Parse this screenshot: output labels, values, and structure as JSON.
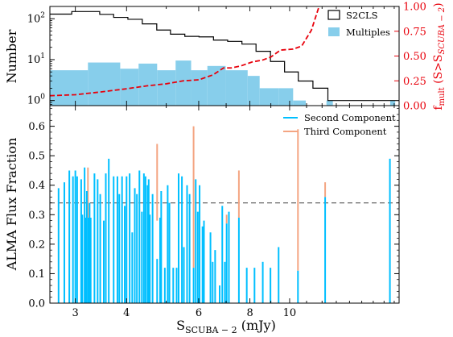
{
  "chart_data": [
    {
      "type": "bar",
      "panel": "top",
      "xscale": "log",
      "xlim": [
        2.6,
        18.5
      ],
      "yscale": "log",
      "ylim": [
        0.75,
        200
      ],
      "ylabel": "Number",
      "y_ticks": [
        {
          "value": 1,
          "base": "10",
          "exp": "0"
        },
        {
          "value": 10,
          "base": "10",
          "exp": "1"
        },
        {
          "value": 100,
          "base": "10",
          "exp": "2"
        }
      ],
      "y2label_main": "f",
      "y2label_sub": "mult",
      "y2label_rest_a": " (S>S",
      "y2label_rest_sub": "SCUBA − 2",
      "y2label_rest_b": ")",
      "y2lim": [
        0,
        1
      ],
      "y2_ticks": [
        {
          "value": 0.0,
          "label": "0.00"
        },
        {
          "value": 0.25,
          "label": "0.25"
        },
        {
          "value": 0.5,
          "label": "0.50"
        },
        {
          "value": 0.75,
          "label": "0.75"
        },
        {
          "value": 1.0,
          "label": "1.00"
        }
      ],
      "legend_position": "upper right",
      "series": [
        {
          "name": "S2CLS",
          "kind": "step",
          "color": "#000000",
          "points": [
            [
              2.6,
              130
            ],
            [
              2.94,
              150
            ],
            [
              3.44,
              128
            ],
            [
              3.72,
              108
            ],
            [
              4.03,
              97
            ],
            [
              4.37,
              75
            ],
            [
              4.74,
              53
            ],
            [
              5.12,
              42
            ],
            [
              5.55,
              37
            ],
            [
              6.01,
              36
            ],
            [
              6.52,
              30
            ],
            [
              7.06,
              28
            ],
            [
              7.65,
              24
            ],
            [
              8.28,
              16
            ],
            [
              8.98,
              9
            ],
            [
              9.72,
              5
            ],
            [
              10.5,
              3
            ],
            [
              11.4,
              2
            ],
            [
              12.4,
              1
            ],
            [
              18.5,
              1
            ]
          ]
        },
        {
          "name": "Multiples",
          "kind": "histogram",
          "color": "#87ceeb",
          "bins": [
            [
              2.6,
              3.22,
              5.5
            ],
            [
              3.22,
              3.86,
              8.5
            ],
            [
              3.86,
              4.28,
              6
            ],
            [
              4.28,
              4.75,
              8
            ],
            [
              4.75,
              5.27,
              5.5
            ],
            [
              5.27,
              5.75,
              9.5
            ],
            [
              5.75,
              6.3,
              5.5
            ],
            [
              6.3,
              6.98,
              7
            ],
            [
              6.98,
              7.9,
              5.5
            ],
            [
              7.9,
              8.45,
              4
            ],
            [
              8.45,
              9.4,
              2
            ],
            [
              9.4,
              10.2,
              2
            ],
            [
              10.2,
              10.95,
              1
            ],
            [
              12.3,
              12.75,
              1
            ],
            [
              17.6,
              18.1,
              1
            ]
          ]
        },
        {
          "name": "f_mult",
          "kind": "line",
          "axis": "right",
          "color": "#e8000b",
          "dashed": true,
          "points": [
            [
              2.6,
              0.1
            ],
            [
              3.0,
              0.11
            ],
            [
              3.5,
              0.14
            ],
            [
              4.0,
              0.17
            ],
            [
              4.5,
              0.2
            ],
            [
              5.0,
              0.22
            ],
            [
              5.5,
              0.25
            ],
            [
              6.0,
              0.26
            ],
            [
              6.5,
              0.31
            ],
            [
              6.9,
              0.38
            ],
            [
              7.2,
              0.38
            ],
            [
              7.6,
              0.4
            ],
            [
              8.1,
              0.44
            ],
            [
              8.6,
              0.46
            ],
            [
              9.0,
              0.49
            ],
            [
              9.5,
              0.56
            ],
            [
              10.2,
              0.57
            ],
            [
              10.7,
              0.6
            ],
            [
              11.3,
              0.76
            ],
            [
              11.8,
              1.0
            ]
          ]
        }
      ]
    },
    {
      "type": "bar",
      "panel": "bottom",
      "xscale": "log",
      "xlim": [
        2.6,
        18.5
      ],
      "ylim": [
        0,
        0.67
      ],
      "xlabel_main": "S",
      "xlabel_sub": "SCUBA − 2",
      "xlabel_rest": " (mJy)",
      "ylabel": "ALMA Flux Fraction",
      "x_ticks": [
        3,
        4,
        6,
        8,
        10
      ],
      "y_ticks": [
        0.0,
        0.1,
        0.2,
        0.3,
        0.4,
        0.5,
        0.6
      ],
      "y_tick_labels": [
        "0.0",
        "0.1",
        "0.2",
        "0.3",
        "0.4",
        "0.5",
        "0.6"
      ],
      "hline": {
        "value": 0.34,
        "color": "#555555",
        "dashed": true
      },
      "legend_position": "upper right",
      "series": [
        {
          "name": "Second Component",
          "color": "#00bfff",
          "x": [
            2.73,
            2.82,
            2.9,
            2.96,
            3.0,
            3.03,
            3.1,
            3.12,
            3.16,
            3.18,
            3.2,
            3.23,
            3.25,
            3.27,
            3.34,
            3.4,
            3.45,
            3.52,
            3.56,
            3.62,
            3.72,
            3.8,
            3.84,
            3.9,
            3.96,
            4.0,
            4.07,
            4.13,
            4.19,
            4.24,
            4.3,
            4.36,
            4.41,
            4.45,
            4.5,
            4.53,
            4.56,
            4.63,
            4.75,
            4.83,
            4.86,
            4.96,
            5.04,
            5.09,
            5.2,
            5.3,
            5.36,
            5.46,
            5.52,
            5.62,
            5.7,
            5.83,
            5.9,
            5.97,
            6.03,
            6.13,
            6.18,
            6.41,
            6.49,
            6.58,
            6.75,
            6.85,
            6.95,
            7.02,
            7.11,
            7.52,
            7.86,
            8.21,
            8.6,
            8.98,
            9.4,
            10.48,
            12.21,
            17.57
          ],
          "values": [
            0.39,
            0.41,
            0.45,
            0.43,
            0.45,
            0.43,
            0.42,
            0.3,
            0.46,
            0.29,
            0.38,
            0.29,
            0.34,
            0.29,
            0.44,
            0.42,
            0.37,
            0.28,
            0.44,
            0.49,
            0.43,
            0.43,
            0.37,
            0.43,
            0.33,
            0.43,
            0.44,
            0.24,
            0.39,
            0.37,
            0.45,
            0.31,
            0.44,
            0.43,
            0.4,
            0.42,
            0.3,
            0.37,
            0.15,
            0.29,
            0.38,
            0.12,
            0.4,
            0.34,
            0.12,
            0.12,
            0.44,
            0.43,
            0.19,
            0.4,
            0.37,
            0.12,
            0.42,
            0.31,
            0.4,
            0.26,
            0.28,
            0.24,
            0.14,
            0.18,
            0.06,
            0.33,
            0.14,
            0.27,
            0.31,
            0.29,
            0.12,
            0.12,
            0.14,
            0.12,
            0.19,
            0.11,
            0.36,
            0.49
          ]
        },
        {
          "name": "Third Component",
          "color": "#f4a582",
          "x": [
            3.22,
            4.75,
            5.83,
            7.02,
            7.52,
            10.48,
            12.21
          ],
          "low": [
            0.29,
            0.28,
            0.12,
            0.27,
            0.29,
            0.11,
            0.36
          ],
          "high": [
            0.46,
            0.54,
            0.6,
            0.3,
            0.45,
            0.59,
            0.41
          ]
        }
      ]
    }
  ]
}
